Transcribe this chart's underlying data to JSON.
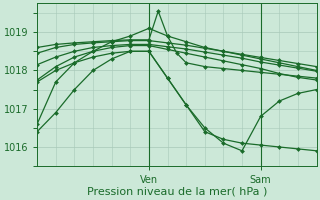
{
  "bg_color": "#cce8d8",
  "grid_color": "#a8c8b8",
  "line_color": "#1a6b2a",
  "marker_color": "#1a6b2a",
  "xlabel": "Pression niveau de la mer( hPa )",
  "xlabel_fontsize": 8,
  "tick_label_color": "#1a6b2a",
  "ylim": [
    1015.5,
    1019.75
  ],
  "yticks": [
    1016,
    1017,
    1018,
    1019
  ],
  "ven_x": 12,
  "sam_x": 24,
  "xlim": [
    0,
    30
  ],
  "series": [
    {
      "pts": [
        [
          0,
          1016.6
        ],
        [
          2,
          1017.7
        ],
        [
          4,
          1018.2
        ],
        [
          6,
          1018.5
        ],
        [
          8,
          1018.75
        ],
        [
          10,
          1018.9
        ],
        [
          12,
          1019.1
        ],
        [
          14,
          1018.9
        ],
        [
          16,
          1018.75
        ],
        [
          18,
          1018.6
        ],
        [
          20,
          1018.5
        ],
        [
          22,
          1018.4
        ],
        [
          24,
          1018.3
        ],
        [
          26,
          1018.2
        ],
        [
          28,
          1018.1
        ],
        [
          30,
          1018.0
        ]
      ]
    },
    {
      "pts": [
        [
          0,
          1017.75
        ],
        [
          2,
          1018.1
        ],
        [
          4,
          1018.35
        ],
        [
          6,
          1018.5
        ],
        [
          8,
          1018.6
        ],
        [
          10,
          1018.65
        ],
        [
          12,
          1018.65
        ],
        [
          14,
          1018.55
        ],
        [
          16,
          1018.45
        ],
        [
          18,
          1018.35
        ],
        [
          20,
          1018.25
        ],
        [
          22,
          1018.15
        ],
        [
          24,
          1018.05
        ],
        [
          26,
          1017.92
        ],
        [
          28,
          1017.82
        ],
        [
          30,
          1017.75
        ]
      ]
    },
    {
      "pts": [
        [
          0,
          1018.15
        ],
        [
          2,
          1018.35
        ],
        [
          4,
          1018.5
        ],
        [
          6,
          1018.6
        ],
        [
          8,
          1018.65
        ],
        [
          10,
          1018.68
        ],
        [
          12,
          1018.68
        ],
        [
          14,
          1018.62
        ],
        [
          16,
          1018.56
        ],
        [
          18,
          1018.48
        ],
        [
          20,
          1018.4
        ],
        [
          22,
          1018.32
        ],
        [
          24,
          1018.22
        ],
        [
          26,
          1018.14
        ],
        [
          28,
          1018.06
        ],
        [
          30,
          1017.98
        ]
      ]
    },
    {
      "pts": [
        [
          0,
          1018.45
        ],
        [
          2,
          1018.6
        ],
        [
          4,
          1018.68
        ],
        [
          6,
          1018.72
        ],
        [
          8,
          1018.75
        ],
        [
          10,
          1018.78
        ],
        [
          12,
          1018.78
        ],
        [
          14,
          1018.72
        ],
        [
          16,
          1018.66
        ],
        [
          18,
          1018.58
        ],
        [
          20,
          1018.5
        ],
        [
          22,
          1018.42
        ],
        [
          24,
          1018.34
        ],
        [
          26,
          1018.26
        ],
        [
          28,
          1018.18
        ],
        [
          30,
          1018.1
        ]
      ]
    },
    {
      "pts": [
        [
          0,
          1016.4
        ],
        [
          2,
          1016.9
        ],
        [
          4,
          1017.5
        ],
        [
          6,
          1018.0
        ],
        [
          8,
          1018.3
        ],
        [
          10,
          1018.5
        ],
        [
          12,
          1018.5
        ],
        [
          14,
          1017.8
        ],
        [
          16,
          1017.1
        ],
        [
          18,
          1016.4
        ],
        [
          20,
          1016.2
        ],
        [
          22,
          1016.1
        ],
        [
          24,
          1016.05
        ],
        [
          26,
          1016.0
        ],
        [
          28,
          1015.95
        ],
        [
          30,
          1015.9
        ]
      ]
    },
    {
      "pts": [
        [
          0,
          1017.7
        ],
        [
          2,
          1018.0
        ],
        [
          4,
          1018.2
        ],
        [
          6,
          1018.35
        ],
        [
          8,
          1018.45
        ],
        [
          10,
          1018.5
        ],
        [
          12,
          1018.5
        ],
        [
          14,
          1017.8
        ],
        [
          16,
          1017.1
        ],
        [
          18,
          1016.5
        ],
        [
          20,
          1016.1
        ],
        [
          22,
          1015.9
        ],
        [
          24,
          1016.8
        ],
        [
          26,
          1017.2
        ],
        [
          28,
          1017.4
        ],
        [
          30,
          1017.5
        ]
      ]
    },
    {
      "pts": [
        [
          0,
          1018.6
        ],
        [
          2,
          1018.68
        ],
        [
          4,
          1018.72
        ],
        [
          6,
          1018.75
        ],
        [
          8,
          1018.78
        ],
        [
          10,
          1018.8
        ],
        [
          12,
          1018.8
        ],
        [
          13,
          1019.55
        ],
        [
          14,
          1018.9
        ],
        [
          15,
          1018.45
        ],
        [
          16,
          1018.2
        ],
        [
          18,
          1018.1
        ],
        [
          20,
          1018.05
        ],
        [
          22,
          1018.0
        ],
        [
          24,
          1017.95
        ],
        [
          26,
          1017.9
        ],
        [
          28,
          1017.85
        ],
        [
          30,
          1017.8
        ]
      ]
    }
  ],
  "n_points": 16
}
